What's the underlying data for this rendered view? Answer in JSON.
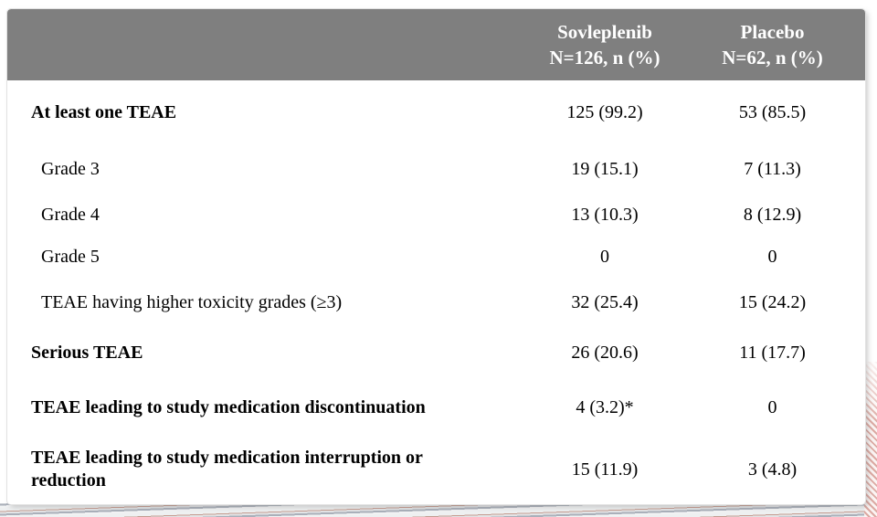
{
  "slide": {
    "colors": {
      "header_bg": "#7f7f7f",
      "header_text": "#ffffff",
      "body_text": "#000000",
      "stripe_pink": "#dcaaa3",
      "stripe_gray": "#aab0ba"
    }
  },
  "table": {
    "header": {
      "col1": {
        "line1": "Sovleplenib",
        "line2": "N=126, n (%)"
      },
      "col2": {
        "line1": "Placebo",
        "line2": "N=62, n (%)"
      }
    },
    "rows": [
      {
        "label": "At least one TEAE",
        "sovleplenib": "125 (99.2)",
        "placebo": "53 (85.5)",
        "is_subitem": false
      },
      {
        "label": "Grade 3",
        "sovleplenib": "19 (15.1)",
        "placebo": "7 (11.3)",
        "is_subitem": true
      },
      {
        "label": "Grade 4",
        "sovleplenib": "13 (10.3)",
        "placebo": "8 (12.9)",
        "is_subitem": true
      },
      {
        "label": "Grade 5",
        "sovleplenib": "0",
        "placebo": "0",
        "is_subitem": true
      },
      {
        "label": "TEAE having higher toxicity grades (≥3)",
        "sovleplenib": "32 (25.4)",
        "placebo": "15 (24.2)",
        "is_subitem": true
      },
      {
        "label": "Serious TEAE",
        "sovleplenib": "26 (20.6)",
        "placebo": "11 (17.7)",
        "is_subitem": false
      },
      {
        "label": "TEAE leading to study medication discontinuation",
        "sovleplenib": "4 (3.2)*",
        "placebo": "0",
        "is_subitem": false
      },
      {
        "label": "TEAE leading to study medication interruption or reduction",
        "sovleplenib": "15 (11.9)",
        "placebo": "3 (4.8)",
        "is_subitem": false
      }
    ]
  },
  "chart_data": {
    "type": "table",
    "title": "",
    "columns": [
      "",
      "Sovleplenib N=126, n (%)",
      "Placebo N=62, n (%)"
    ],
    "rows": [
      [
        "At least one TEAE",
        "125 (99.2)",
        "53 (85.5)"
      ],
      [
        "Grade 3",
        "19 (15.1)",
        "7 (11.3)"
      ],
      [
        "Grade 4",
        "13 (10.3)",
        "8 (12.9)"
      ],
      [
        "Grade 5",
        "0",
        "0"
      ],
      [
        "TEAE having higher toxicity grades (≥3)",
        "32 (25.4)",
        "15 (24.2)"
      ],
      [
        "Serious TEAE",
        "26 (20.6)",
        "11 (17.7)"
      ],
      [
        "TEAE leading to study medication discontinuation",
        "4 (3.2)*",
        "0"
      ],
      [
        "TEAE leading to study medication interruption or reduction",
        "15 (11.9)",
        "3 (4.8)"
      ]
    ],
    "notes": "Sub-rows (Grade 3/4/5, TEAE having higher toxicity grades) are indented non-bold; category rows are bold. Asterisk footnote marker on 4 (3.2)*.",
    "layout_hints": {
      "header_background": "#7f7f7f",
      "gridlines": false,
      "value_alignment": "center"
    }
  }
}
